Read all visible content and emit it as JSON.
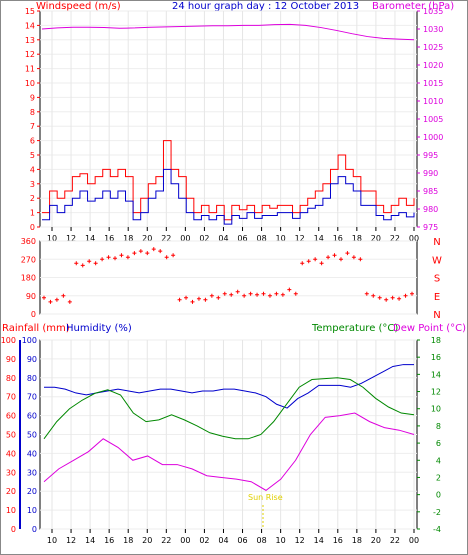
{
  "header": {
    "left_label": "Windspeed (m/s)",
    "title": "24 hour graph day : 12 October 2013",
    "right_label": "Barometer (hPa)"
  },
  "colors": {
    "red": "#ff0000",
    "blue": "#0000cc",
    "magenta": "#dd00dd",
    "green": "#008800",
    "frame": "#000000",
    "sunrise": "#e0d000"
  },
  "chart_data": [
    {
      "type": "line",
      "name": "wind-barometer",
      "x_tick_labels": [
        "10",
        "12",
        "14",
        "16",
        "18",
        "20",
        "22",
        "00",
        "02",
        "04",
        "06",
        "08",
        "10",
        "12",
        "14",
        "16",
        "18",
        "20",
        "22",
        "00"
      ],
      "left_axis": {
        "label": "Windspeed (m/s)",
        "range": [
          0,
          15
        ],
        "ticks": [
          0,
          1,
          2,
          3,
          4,
          5,
          6,
          7,
          8,
          9,
          10,
          11,
          12,
          13,
          14,
          15
        ]
      },
      "right_axis": {
        "label": "Barometer (hPa)",
        "range": [
          975,
          1035
        ],
        "ticks": [
          975,
          980,
          985,
          990,
          995,
          1000,
          1005,
          1010,
          1015,
          1020,
          1025,
          1030,
          1035
        ]
      },
      "barometer_hpa": [
        1030.0,
        1030.3,
        1030.5,
        1030.5,
        1030.4,
        1030.2,
        1030.3,
        1030.5,
        1030.6,
        1030.7,
        1030.8,
        1030.9,
        1030.9,
        1031.0,
        1031.0,
        1031.2,
        1031.3,
        1031.0,
        1030.4,
        1029.6,
        1028.7,
        1027.9,
        1027.4,
        1027.2,
        1027.0
      ],
      "gust_ms": [
        1,
        2.5,
        2,
        2.5,
        3.5,
        3.7,
        3,
        3.5,
        4,
        3.5,
        4,
        3.5,
        1,
        2,
        3,
        3.5,
        6,
        4,
        3.5,
        2,
        1,
        1.5,
        1,
        1.5,
        0.5,
        1.5,
        1.2,
        1.5,
        1,
        1.5,
        1.3,
        1.5,
        1.5,
        1,
        1.5,
        2,
        2.5,
        3,
        4,
        5,
        4,
        3.5,
        2.5,
        2.5,
        1.5,
        1,
        1.5,
        2,
        1.5,
        2
      ],
      "average_ms": [
        0.5,
        1.5,
        1,
        1.5,
        2,
        2.5,
        1.8,
        2,
        2.5,
        2,
        2.5,
        1.8,
        0.5,
        1,
        2,
        2.5,
        4,
        3,
        2,
        1,
        0.5,
        0.8,
        0.5,
        0.8,
        0.2,
        0.8,
        0.6,
        1,
        0.6,
        0.8,
        0.8,
        1,
        1,
        0.6,
        1,
        1.3,
        1.5,
        2,
        3,
        3.5,
        3,
        2.5,
        1.5,
        1.5,
        0.8,
        0.5,
        0.8,
        1,
        0.7,
        1
      ]
    },
    {
      "type": "scatter",
      "name": "wind-direction",
      "y_tick_labels": [
        "360",
        "270",
        "180",
        "90",
        "0"
      ],
      "compass_labels": [
        "N",
        "W",
        "S",
        "E",
        "N"
      ],
      "direction_deg": [
        80,
        60,
        70,
        90,
        60,
        250,
        240,
        260,
        250,
        270,
        280,
        275,
        290,
        280,
        300,
        310,
        300,
        320,
        310,
        280,
        290,
        70,
        80,
        60,
        75,
        70,
        90,
        80,
        100,
        95,
        110,
        90,
        100,
        95,
        100,
        90,
        100,
        95,
        120,
        100,
        250,
        260,
        270,
        250,
        280,
        290,
        270,
        300,
        280,
        270,
        100,
        90,
        80,
        70,
        80,
        75,
        90,
        100
      ]
    },
    {
      "type": "line",
      "name": "temperature-humidity",
      "x_tick_labels": [
        "10",
        "12",
        "14",
        "16",
        "18",
        "20",
        "22",
        "00",
        "02",
        "04",
        "06",
        "08",
        "10",
        "12",
        "14",
        "16",
        "18",
        "20",
        "22",
        "00"
      ],
      "left_axis_rainfall": {
        "label": "Rainfall (mm)",
        "range": [
          0,
          100
        ],
        "ticks": [
          0,
          10,
          20,
          30,
          40,
          50,
          60,
          70,
          80,
          90,
          100
        ]
      },
      "left_axis_humidity": {
        "label": "Humidity (%)",
        "range": [
          0,
          100
        ],
        "ticks": [
          0,
          10,
          20,
          30,
          40,
          50,
          60,
          70,
          80,
          90,
          100
        ]
      },
      "right_axis": {
        "label": "Temperature (°C)",
        "label2": "Dew Point (°C)",
        "range": [
          -4,
          18
        ],
        "ticks": [
          -4,
          -2,
          0,
          2,
          4,
          6,
          8,
          10,
          12,
          14,
          16,
          18
        ]
      },
      "series": [
        {
          "name": "Humidity (%)",
          "values": [
            75,
            75,
            74,
            72,
            71,
            72,
            73,
            74,
            73,
            72,
            73,
            74,
            74,
            73,
            72,
            73,
            73,
            74,
            74,
            73,
            72,
            70,
            66,
            64,
            69,
            72,
            76,
            76,
            76,
            75,
            77,
            80,
            83,
            86,
            87,
            87
          ]
        },
        {
          "name": "Temperature (°C)",
          "values": [
            6.5,
            8.5,
            10,
            11,
            11.8,
            12.2,
            11.6,
            9.5,
            8.5,
            8.7,
            9.3,
            8.7,
            8,
            7.2,
            6.8,
            6.5,
            6.5,
            7,
            8.5,
            10.5,
            12.5,
            13.4,
            13.5,
            13.6,
            13.4,
            12.5,
            11.2,
            10.2,
            9.5,
            9.3
          ]
        },
        {
          "name": "Dew Point (°C)",
          "values": [
            1.5,
            3,
            4,
            5,
            6.5,
            5.5,
            4,
            4.5,
            3.5,
            3.5,
            3,
            2.2,
            2,
            1.8,
            1.5,
            0.5,
            1.8,
            4,
            7,
            9,
            9.2,
            9.5,
            8.5,
            7.8,
            7.5,
            7
          ]
        }
      ],
      "rainfall_mm": [
        0
      ],
      "annotation": "Sun Rise"
    }
  ]
}
